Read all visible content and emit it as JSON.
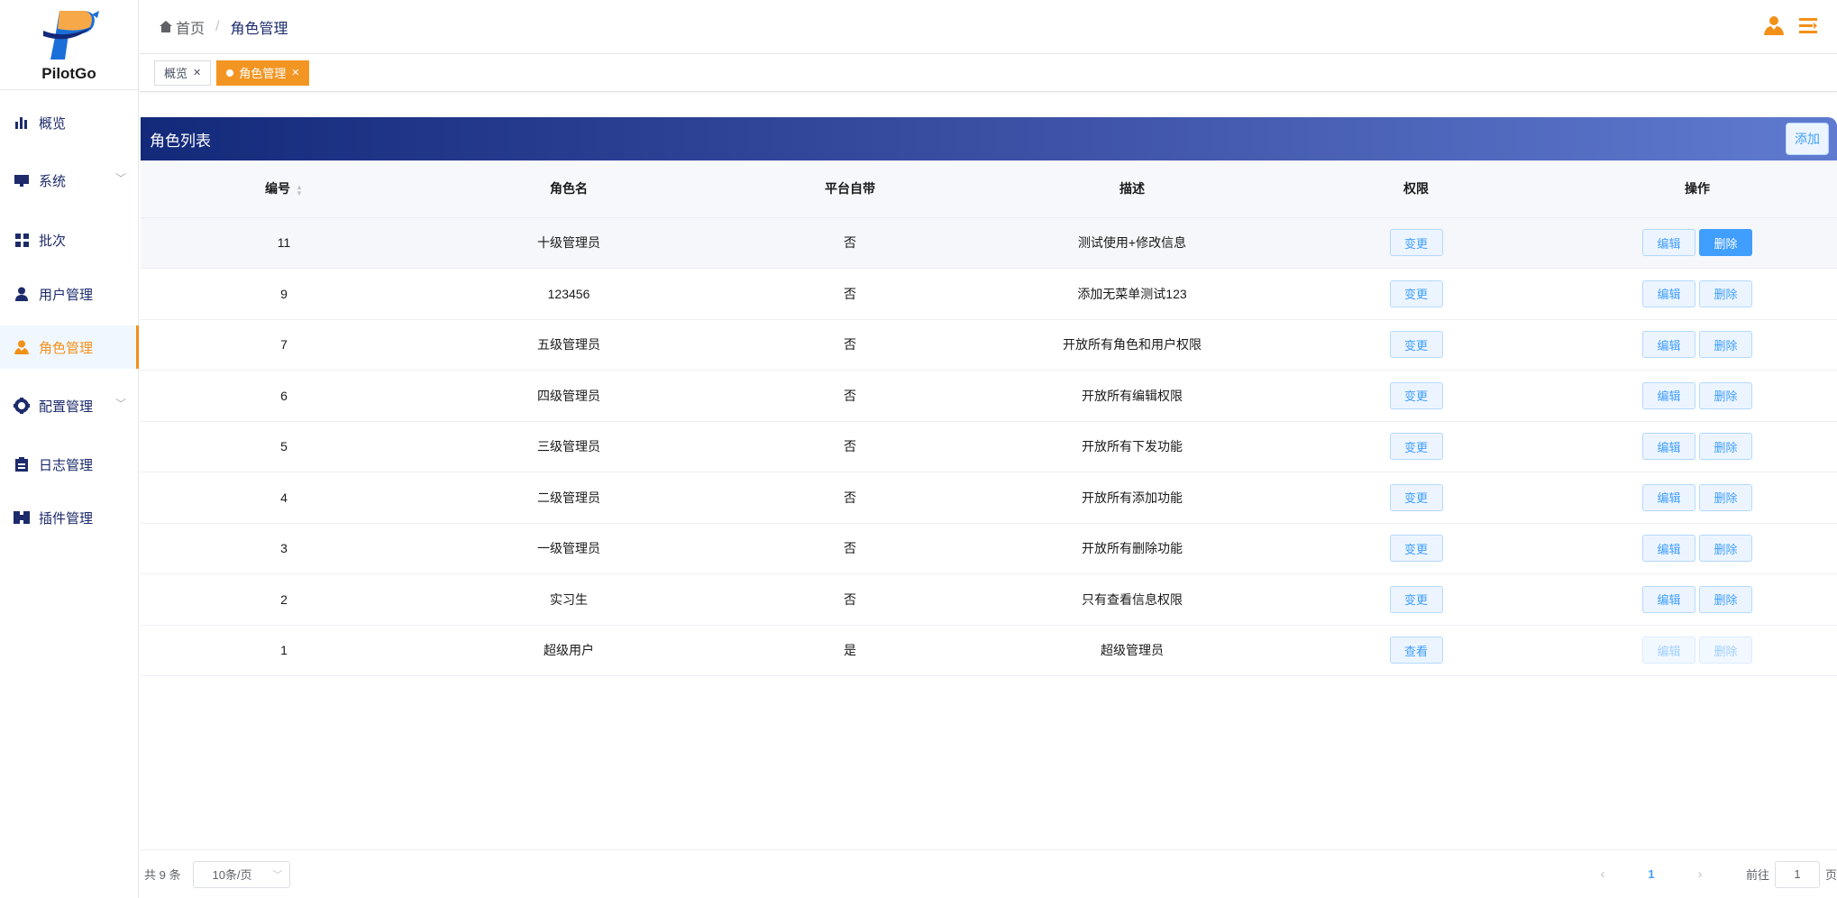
{
  "brand": {
    "name": "PilotGo",
    "accent": "#f39018",
    "nav_color": "#1d2b6b"
  },
  "sidebar": {
    "items": [
      {
        "label": "概览",
        "icon": "bar-chart-icon",
        "expandable": false
      },
      {
        "label": "系统",
        "icon": "monitor-icon",
        "expandable": true
      },
      {
        "label": "批次",
        "icon": "grid-icon",
        "expandable": false
      },
      {
        "label": "用户管理",
        "icon": "user-icon",
        "expandable": false
      },
      {
        "label": "角色管理",
        "icon": "role-icon",
        "expandable": false,
        "active": true
      },
      {
        "label": "配置管理",
        "icon": "gear-icon",
        "expandable": true
      },
      {
        "label": "日志管理",
        "icon": "clipboard-icon",
        "expandable": false
      },
      {
        "label": "插件管理",
        "icon": "plugin-icon",
        "expandable": false
      }
    ]
  },
  "header": {
    "home": "首页",
    "separator": "/",
    "current": "角色管理"
  },
  "tabs": [
    {
      "label": "概览",
      "active": false
    },
    {
      "label": "角色管理",
      "active": true
    }
  ],
  "card": {
    "title": "角色列表",
    "add_label": "添加"
  },
  "table": {
    "columns": [
      "编号",
      "角色名",
      "平台自带",
      "描述",
      "权限",
      "操作"
    ],
    "edit_label": "编辑",
    "delete_label": "删除",
    "rows": [
      {
        "id": "11",
        "name": "十级管理员",
        "builtin": "否",
        "desc": "测试使用+修改信息",
        "perm": "变更"
      },
      {
        "id": "9",
        "name": "123456",
        "builtin": "否",
        "desc": "添加无菜单测试123",
        "perm": "变更"
      },
      {
        "id": "7",
        "name": "五级管理员",
        "builtin": "否",
        "desc": "开放所有角色和用户权限",
        "perm": "变更"
      },
      {
        "id": "6",
        "name": "四级管理员",
        "builtin": "否",
        "desc": "开放所有编辑权限",
        "perm": "变更"
      },
      {
        "id": "5",
        "name": "三级管理员",
        "builtin": "否",
        "desc": "开放所有下发功能",
        "perm": "变更"
      },
      {
        "id": "4",
        "name": "二级管理员",
        "builtin": "否",
        "desc": "开放所有添加功能",
        "perm": "变更"
      },
      {
        "id": "3",
        "name": "一级管理员",
        "builtin": "否",
        "desc": "开放所有删除功能",
        "perm": "变更"
      },
      {
        "id": "2",
        "name": "实习生",
        "builtin": "否",
        "desc": "只有查看信息权限",
        "perm": "变更"
      },
      {
        "id": "1",
        "name": "超级用户",
        "builtin": "是",
        "desc": "超级管理员",
        "perm": "查看",
        "disabled": true
      }
    ]
  },
  "pagination": {
    "total": "共 9 条",
    "page_size": "10条/页",
    "current_page": "1",
    "goto_label": "前往",
    "goto_value": "1",
    "page_suffix": "页"
  }
}
